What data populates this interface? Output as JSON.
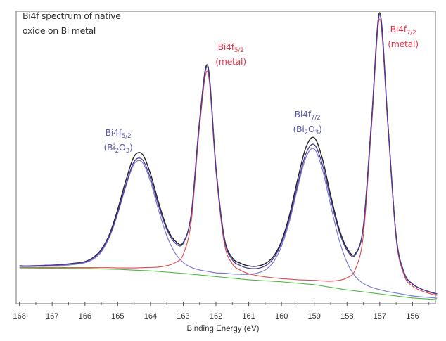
{
  "chart_data": {
    "type": "line",
    "title_lines": [
      "Bi4f spectrum of native",
      "oxide on Bi metal"
    ],
    "xlabel": "Binding Energy (eV)",
    "ylabel": "",
    "xlim": [
      168.1,
      155.3
    ],
    "ylim": [
      0,
      101.3
    ],
    "x_reversed": true,
    "grid": false,
    "x_ticks": [
      "168",
      "167",
      "166",
      "165",
      "164",
      "163",
      "162",
      "161",
      "160",
      "159",
      "158",
      "157",
      "156"
    ],
    "colors": {
      "experimental": "#222222",
      "fit": "#4b3b9c",
      "metal": "#e2474f",
      "oxide": "#7d7dd2",
      "background": "#4dbb3f",
      "metal_label": "#e8384f",
      "oxide_label": "#5b5bab"
    },
    "x": [
      168,
      167.75,
      167.5,
      167.25,
      167,
      166.75,
      166.5,
      166.25,
      166,
      165.75,
      165.5,
      165.25,
      165,
      164.75,
      164.5,
      164.25,
      164,
      163.75,
      163.5,
      163.25,
      163,
      162.75,
      162.5,
      162.25,
      162,
      161.75,
      161.5,
      161.25,
      161,
      160.75,
      160.5,
      160.25,
      160,
      159.75,
      159.5,
      159.25,
      159,
      158.75,
      158.5,
      158.25,
      158,
      157.75,
      157.5,
      157.25,
      157,
      156.75,
      156.5,
      156.25,
      156,
      155.75,
      155.5,
      155.25
    ],
    "series": [
      {
        "key": "experimental",
        "values": [
          13.2,
          13.0,
          13.1,
          13.3,
          13.3,
          13.6,
          13.8,
          14.1,
          14.6,
          16.0,
          18.8,
          24.1,
          32.6,
          42.7,
          51.0,
          51.8,
          45.0,
          35.0,
          26.4,
          21.8,
          21.2,
          31.5,
          63.6,
          82.4,
          47.2,
          23.0,
          15.9,
          14.0,
          13.1,
          13.0,
          13.9,
          16.3,
          21.7,
          31.0,
          43.4,
          54.3,
          57.5,
          50.1,
          37.6,
          26.3,
          19.2,
          17.3,
          27.0,
          63.6,
          100.8,
          62.2,
          23.6,
          10.6,
          6.9,
          5.2,
          4.2,
          3.4
        ]
      },
      {
        "key": "oxide",
        "values": [
          12.9,
          12.9,
          13.0,
          13.0,
          13.1,
          13.2,
          13.4,
          13.7,
          14.2,
          15.4,
          18.0,
          23.1,
          31.1,
          40.7,
          48.4,
          49.0,
          42.3,
          32.3,
          23.5,
          17.6,
          14.3,
          12.6,
          11.7,
          11.2,
          10.7,
          10.6,
          10.3,
          10.2,
          10.2,
          10.6,
          11.7,
          14.4,
          19.9,
          28.8,
          40.5,
          50.8,
          53.6,
          46.4,
          34.1,
          22.5,
          14.3,
          9.5,
          7.0,
          5.7,
          4.9,
          4.2,
          3.7,
          3.2,
          2.7,
          2.4,
          2.2,
          1.9
        ]
      },
      {
        "key": "metal",
        "values": [
          12.6,
          12.6,
          12.6,
          12.6,
          12.6,
          12.6,
          12.5,
          12.5,
          12.5,
          12.5,
          12.5,
          12.5,
          12.4,
          12.4,
          12.4,
          12.5,
          12.6,
          12.7,
          13.2,
          14.2,
          17.1,
          29.0,
          61.5,
          80.2,
          45.6,
          21.1,
          13.8,
          11.6,
          10.4,
          9.8,
          9.3,
          9.0,
          8.7,
          8.5,
          8.3,
          8.2,
          8.1,
          7.9,
          7.8,
          8.1,
          9.0,
          11.8,
          23.9,
          61.4,
          98.6,
          60.7,
          22.4,
          9.7,
          6.1,
          4.6,
          3.6,
          2.9
        ]
      },
      {
        "key": "background",
        "values": [
          12.4,
          12.38,
          12.35,
          12.33,
          12.3,
          12.28,
          12.25,
          12.23,
          12.2,
          12.13,
          12.05,
          11.98,
          11.9,
          11.78,
          11.65,
          11.53,
          11.4,
          11.18,
          10.95,
          10.73,
          10.5,
          10.23,
          9.95,
          9.68,
          9.4,
          9.13,
          8.85,
          8.58,
          8.3,
          8.13,
          7.95,
          7.78,
          7.6,
          7.35,
          7.1,
          6.85,
          6.6,
          6.15,
          5.7,
          5.25,
          4.8,
          4.45,
          4.1,
          3.75,
          3.4,
          3.05,
          2.7,
          2.35,
          2.0,
          1.8,
          1.6,
          1.4
        ]
      },
      {
        "key": "fit",
        "values": [
          13.1,
          13.1,
          13.2,
          13.2,
          13.4,
          13.5,
          13.7,
          14.0,
          14.5,
          15.8,
          18.5,
          23.6,
          31.6,
          41.3,
          49.2,
          49.9,
          43.5,
          33.9,
          25.7,
          21.1,
          20.9,
          31.4,
          63.3,
          81.7,
          46.9,
          22.5,
          15.2,
          13.2,
          12.3,
          12.2,
          13.1,
          15.6,
          21.0,
          29.9,
          41.7,
          52.1,
          55.1,
          48.1,
          36.2,
          25.4,
          18.5,
          16.9,
          26.8,
          63.3,
          100.1,
          61.9,
          23.4,
          10.5,
          6.8,
          5.2,
          4.1,
          3.4
        ]
      }
    ],
    "annotations": [
      {
        "key": "bi4f52-metal",
        "line1": "Bi4f",
        "sub": "5/2",
        "line2": "(metal)",
        "kind": "metal"
      },
      {
        "key": "bi4f72-metal",
        "line1": "Bi4f",
        "sub": "7/2",
        "line2": "(metal)",
        "kind": "metal"
      },
      {
        "key": "bi4f72-oxide",
        "line1": "Bi4f",
        "sub": "7/2",
        "line2_a": "(Bi",
        "line2_sub1": "2",
        "line2_b": "O",
        "line2_sub2": "3",
        "line2_c": ")",
        "kind": "oxide"
      },
      {
        "key": "bi4f52-oxide",
        "line1": "Bi4f",
        "sub": "5/2",
        "line2_a": "(Bi",
        "line2_sub1": "2",
        "line2_b": "O",
        "line2_sub2": "3",
        "line2_c": ")",
        "kind": "oxide"
      }
    ]
  }
}
